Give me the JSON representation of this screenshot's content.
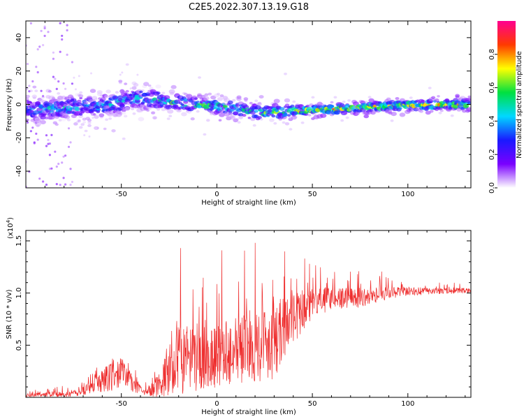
{
  "title": "C2E5.2022.307.13.19.G18",
  "chart_data": [
    {
      "type": "heatmap",
      "xlabel": "Height of straight line (km)",
      "ylabel": "Frequency (Hz)",
      "xlim": [
        -100,
        133
      ],
      "ylim": [
        -50,
        50
      ],
      "xticks": [
        "-50",
        "0",
        "50",
        "100"
      ],
      "yticks": [
        "-40",
        "-20",
        "0",
        "20",
        "40"
      ],
      "colorbar": {
        "label": "Normalized spectral amplitude",
        "range": [
          0,
          1
        ],
        "ticks": [
          "0.0",
          "0.2",
          "0.4",
          "0.6",
          "0.8"
        ],
        "colormap": [
          "#ffffff",
          "#7a00ff",
          "#1a1aff",
          "#00d8ff",
          "#00e040",
          "#ffff00",
          "#ff3a00",
          "#ff0090"
        ]
      },
      "signal_center_hz": [
        {
          "x": -95,
          "y": -3
        },
        {
          "x": -60,
          "y": -1
        },
        {
          "x": -40,
          "y": 4
        },
        {
          "x": -20,
          "y": 1
        },
        {
          "x": 0,
          "y": -1
        },
        {
          "x": 25,
          "y": -5
        },
        {
          "x": 50,
          "y": -3.5
        },
        {
          "x": 75,
          "y": -2
        },
        {
          "x": 100,
          "y": -0.5
        },
        {
          "x": 133,
          "y": 0
        }
      ]
    },
    {
      "type": "line",
      "xlabel": "Height of straight line (km)",
      "ylabel": "SNR (10 * v/v)",
      "scale_label": "(x10",
      "scale_exp": "4",
      "scale_close": ")",
      "xlim": [
        -100,
        133
      ],
      "ylim": [
        0,
        1.6
      ],
      "xticks": [
        "-50",
        "0",
        "50",
        "100"
      ],
      "yticks": [
        "0.5",
        "1.0",
        "1.5"
      ],
      "series": [
        {
          "color": "#ee2b2b",
          "envelope": [
            {
              "x": -100,
              "base": 0.02,
              "amp": 0.05
            },
            {
              "x": -75,
              "base": 0.03,
              "amp": 0.08
            },
            {
              "x": -65,
              "base": 0.1,
              "amp": 0.15
            },
            {
              "x": -55,
              "base": 0.22,
              "amp": 0.4
            },
            {
              "x": -50,
              "base": 0.25,
              "amp": 0.35
            },
            {
              "x": -45,
              "base": 0.15,
              "amp": 0.25
            },
            {
              "x": -38,
              "base": 0.04,
              "amp": 0.06
            },
            {
              "x": -30,
              "base": 0.12,
              "amp": 0.3
            },
            {
              "x": -20,
              "base": 0.35,
              "amp": 0.9
            },
            {
              "x": -10,
              "base": 0.35,
              "amp": 0.75
            },
            {
              "x": 0,
              "base": 0.4,
              "amp": 0.8
            },
            {
              "x": 10,
              "base": 0.45,
              "amp": 0.8
            },
            {
              "x": 20,
              "base": 0.5,
              "amp": 0.9
            },
            {
              "x": 30,
              "base": 0.55,
              "amp": 0.95
            },
            {
              "x": 40,
              "base": 0.75,
              "amp": 0.6
            },
            {
              "x": 50,
              "base": 0.9,
              "amp": 0.35
            },
            {
              "x": 60,
              "base": 0.95,
              "amp": 0.28
            },
            {
              "x": 75,
              "base": 0.95,
              "amp": 0.22
            },
            {
              "x": 90,
              "base": 1.0,
              "amp": 0.15
            },
            {
              "x": 110,
              "base": 1.02,
              "amp": 0.08
            },
            {
              "x": 133,
              "base": 1.02,
              "amp": 0.06
            }
          ]
        }
      ]
    }
  ]
}
